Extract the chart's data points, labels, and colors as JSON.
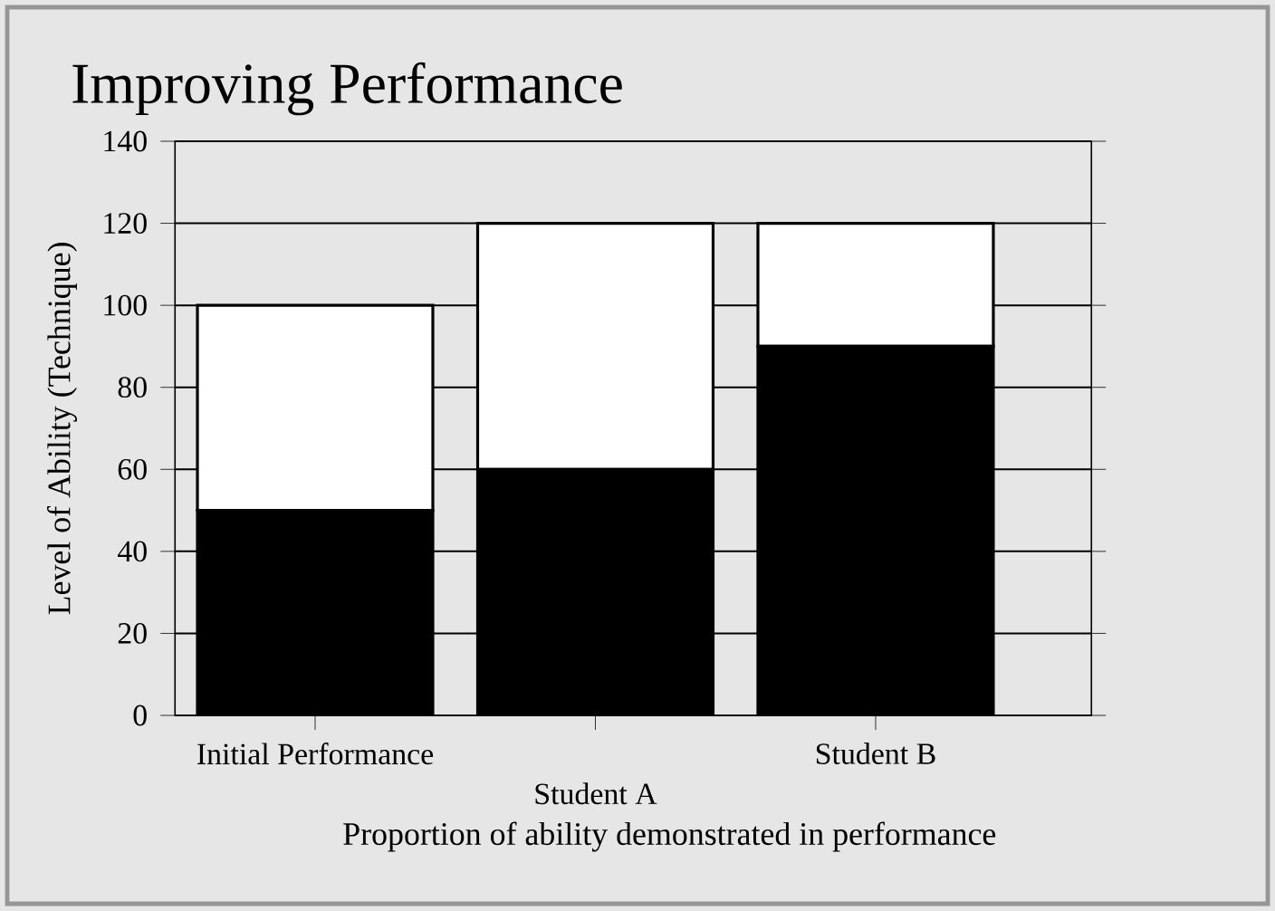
{
  "chart_data": {
    "type": "bar",
    "title": "Improving Performance",
    "xlabel": "Proportion of ability demonstrated in performance",
    "ylabel": "Level of Ability (Technique)",
    "categories": [
      "Initial Performance",
      "Student A",
      "Student B"
    ],
    "stacked": true,
    "series": [
      {
        "color": "#000000",
        "values": [
          50,
          60,
          90
        ]
      },
      {
        "color": "#ffffff",
        "values": [
          50,
          60,
          30
        ]
      }
    ],
    "ylim": [
      0,
      140
    ],
    "yticks": [
      0,
      20,
      40,
      60,
      80,
      100,
      120,
      140
    ],
    "grid": "y"
  }
}
